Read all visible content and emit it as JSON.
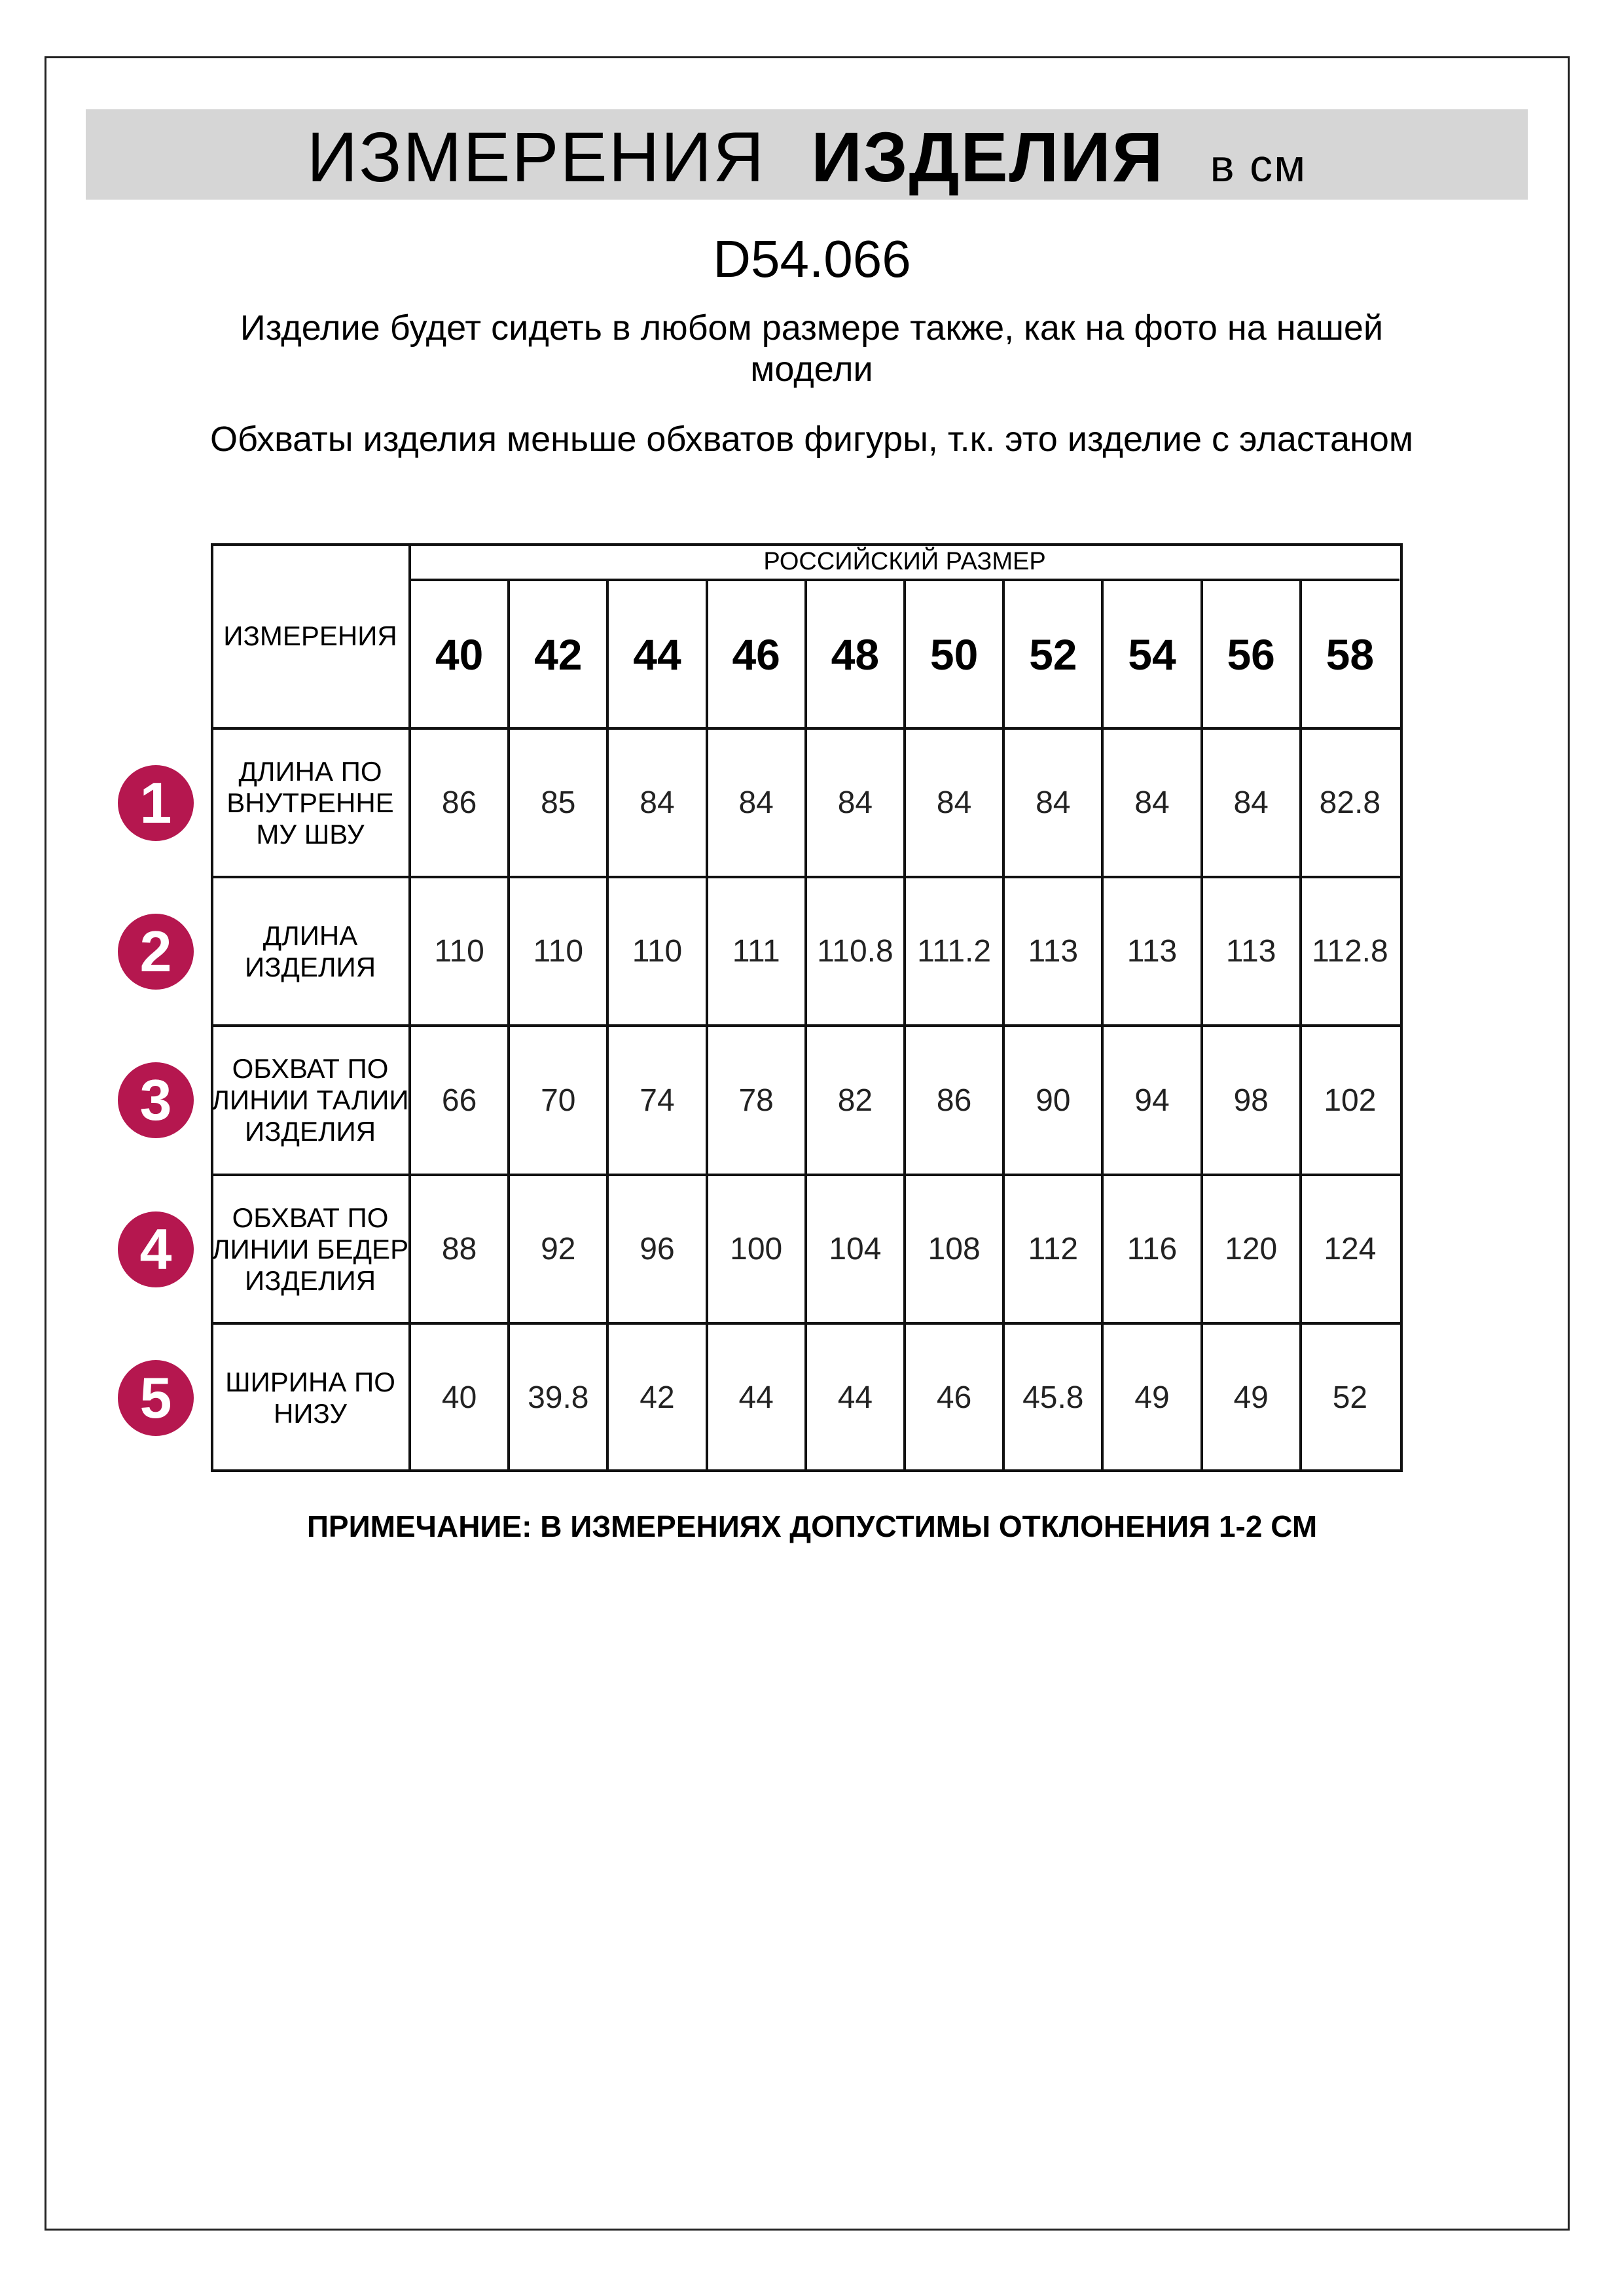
{
  "header": {
    "title_regular": "ИЗМЕРЕНИЯ",
    "title_bold": "ИЗДЕЛИЯ",
    "unit": "в см"
  },
  "product_code": "D54.066",
  "notes": [
    "Изделие будет сидеть в любом размере также, как на фото на нашей модели",
    "Обхваты изделия меньше обхватов фигуры, т.к. это изделие с эластаном"
  ],
  "table": {
    "corner_label": "ИЗМЕРЕНИЯ",
    "group_header": "РОССИЙСКИЙ РАЗМЕР",
    "sizes": [
      "40",
      "42",
      "44",
      "46",
      "48",
      "50",
      "52",
      "54",
      "56",
      "58"
    ],
    "rows": [
      {
        "number": "1",
        "label": "ДЛИНА ПО ВНУТРЕННЕ МУ ШВУ",
        "values": [
          "86",
          "85",
          "84",
          "84",
          "84",
          "84",
          "84",
          "84",
          "84",
          "82.8"
        ]
      },
      {
        "number": "2",
        "label": "ДЛИНА ИЗДЕЛИЯ",
        "values": [
          "110",
          "110",
          "110",
          "111",
          "110.8",
          "111.2",
          "113",
          "113",
          "113",
          "112.8"
        ]
      },
      {
        "number": "3",
        "label": "ОБХВАТ ПО ЛИНИИ ТАЛИИ ИЗДЕЛИЯ",
        "values": [
          "66",
          "70",
          "74",
          "78",
          "82",
          "86",
          "90",
          "94",
          "98",
          "102"
        ]
      },
      {
        "number": "4",
        "label": "ОБХВАТ ПО ЛИНИИ БЕДЕР ИЗДЕЛИЯ",
        "values": [
          "88",
          "92",
          "96",
          "100",
          "104",
          "108",
          "112",
          "116",
          "120",
          "124"
        ]
      },
      {
        "number": "5",
        "label": "ШИРИНА ПО НИЗУ",
        "values": [
          "40",
          "39.8",
          "42",
          "44",
          "44",
          "46",
          "45.8",
          "49",
          "49",
          "52"
        ]
      }
    ]
  },
  "footer_note": "ПРИМЕЧАНИЕ: В ИЗМЕРЕНИЯХ ДОПУСТИМЫ ОТКЛОНЕНИЯ 1-2 СМ",
  "colors": {
    "badge": "#b5174f",
    "title_bar": "#d6d6d6"
  }
}
